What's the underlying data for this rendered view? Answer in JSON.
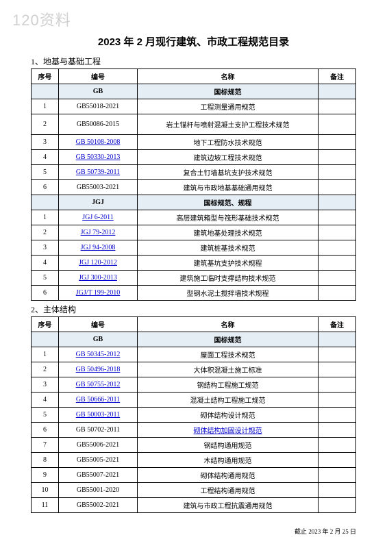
{
  "watermark": "120资料",
  "title": "2023 年 2 月现行建筑、市政工程规范目录",
  "footer": "截止 2023 年 2 月 25 日",
  "columns": {
    "seq": "序号",
    "code": "编号",
    "name": "名称",
    "note": "备注"
  },
  "section1": {
    "label": "1、地基与基础工程",
    "group1": {
      "code_hdr": "GB",
      "name_hdr": "国标规范",
      "rows": [
        {
          "seq": "1",
          "code": "GB55018-2021",
          "name": "工程测量通用规范",
          "link": false,
          "tall": false
        },
        {
          "seq": "2",
          "code": "GB50086-2015",
          "name": "岩土锚杆与喷射混凝土支护工程技术规范",
          "link": false,
          "tall": true
        },
        {
          "seq": "3",
          "code": "GB 50108-2008",
          "name": "地下工程防水技术规范",
          "link": true,
          "tall": false
        },
        {
          "seq": "4",
          "code": "GB 50330-2013",
          "name": "建筑边坡工程技术规范",
          "link": true,
          "tall": false
        },
        {
          "seq": "5",
          "code": "GB 50739-2011",
          "name": "复合土钉墙基坑支护技术规范",
          "link": true,
          "tall": false
        },
        {
          "seq": "6",
          "code": "GB55003-2021",
          "name": "建筑与市政地基基础通用规范",
          "link": false,
          "tall": false
        }
      ]
    },
    "group2": {
      "code_hdr": "JGJ",
      "name_hdr": "国标规范、规程",
      "rows": [
        {
          "seq": "1",
          "code": "JGJ 6-2011",
          "name": "高层建筑箱型与筏形基础技术规范",
          "link": true
        },
        {
          "seq": "2",
          "code": "JGJ 79-2012",
          "name": "建筑地基处理技术规范",
          "link": true
        },
        {
          "seq": "3",
          "code": "JGJ 94-2008",
          "name": "建筑桩基技术规范",
          "link": true
        },
        {
          "seq": "4",
          "code": "JGJ 120-2012",
          "name": "建筑基坑支护技术规程",
          "link": true
        },
        {
          "seq": "5",
          "code": "JGJ 300-2013",
          "name": "建筑施工临时支撑结构技术规范",
          "link": true
        },
        {
          "seq": "6",
          "code": "JGJ/T 199-2010",
          "name": "型钢水泥土搅拌墙技术规程",
          "link": true
        }
      ]
    }
  },
  "section2": {
    "label": "2、主体结构",
    "group1": {
      "code_hdr": "GB",
      "name_hdr": "国标规范",
      "rows": [
        {
          "seq": "1",
          "code": "GB 50345-2012",
          "name": "屋面工程技术规范",
          "code_link": true,
          "name_link": false
        },
        {
          "seq": "2",
          "code": "GB 50496-2018",
          "name": "大体积混凝土施工标准",
          "code_link": true,
          "name_link": false
        },
        {
          "seq": "3",
          "code": "GB 50755-2012",
          "name": "钢结构工程施工规范",
          "code_link": true,
          "name_link": false
        },
        {
          "seq": "4",
          "code": "GB 50666-2011",
          "name": "混凝土结构工程施工规范",
          "code_link": true,
          "name_link": false
        },
        {
          "seq": "5",
          "code": "GB 50003-2011",
          "name": "砌体结构设计规范",
          "code_link": true,
          "name_link": false
        },
        {
          "seq": "6",
          "code": "GB 50702-2011",
          "name": "砌体结构加固设计规范 ",
          "code_link": false,
          "name_link": true
        },
        {
          "seq": "7",
          "code": "GB55006-2021",
          "name": "钢结构通用规范",
          "code_link": false,
          "name_link": false
        },
        {
          "seq": "8",
          "code": "GB55005-2021",
          "name": "木结构通用规范",
          "code_link": false,
          "name_link": false
        },
        {
          "seq": "9",
          "code": "GB55007-2021",
          "name": "砌体结构通用规范",
          "code_link": false,
          "name_link": false
        },
        {
          "seq": "10",
          "code": "GB55001-2020",
          "name": "工程结构通用规范",
          "code_link": false,
          "name_link": false
        },
        {
          "seq": "11",
          "code": "GB55002-2021",
          "name": "建筑与市政工程抗震通用规范",
          "code_link": false,
          "name_link": false
        }
      ]
    }
  }
}
